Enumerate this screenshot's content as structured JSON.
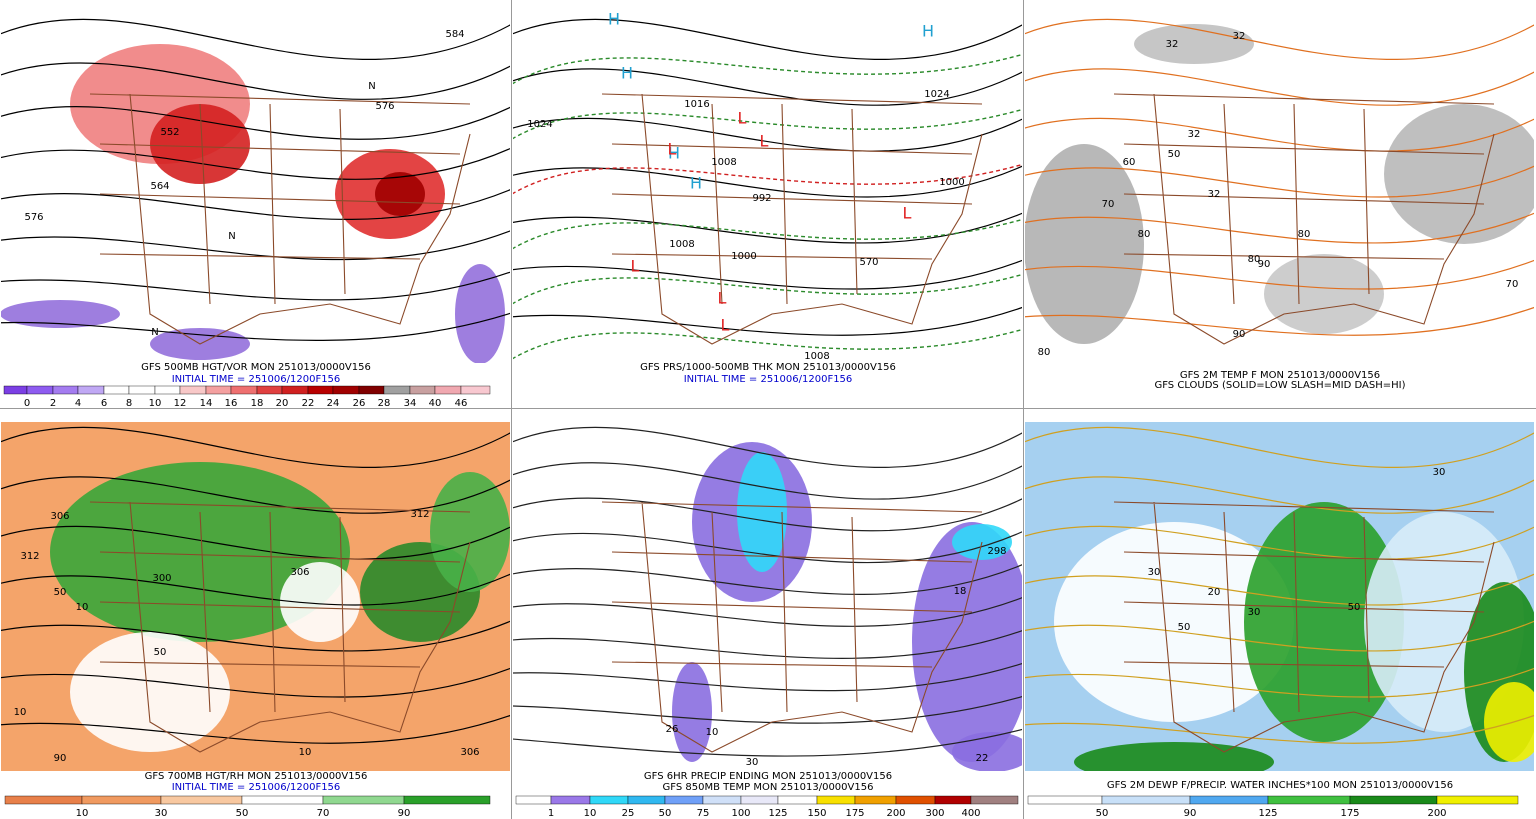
{
  "panels": [
    {
      "caption": [
        "GFS 500MB HGT/VOR MON 251013/0000V156",
        "INITIAL TIME = 251006/1200F156"
      ],
      "colorbar_labels": [
        "0",
        "2",
        "4",
        "6",
        "8",
        "10",
        "12",
        "14",
        "16",
        "18",
        "20",
        "22",
        "24",
        "26",
        "28",
        "34",
        "40",
        "46"
      ],
      "map_labels": [
        "552",
        "564",
        "576",
        "576",
        "584",
        "N",
        "N",
        "N"
      ]
    },
    {
      "caption": [
        "GFS PRS/1000-500MB THK MON 251013/0000V156",
        "INITIAL TIME = 251006/1200F156"
      ],
      "map_labels": [
        "H",
        "H",
        "H",
        "H",
        "H",
        "L",
        "L",
        "L",
        "L",
        "L",
        "L",
        "L",
        "1024",
        "1016",
        "1008",
        "992",
        "1008",
        "1000",
        "570",
        "1008",
        "1000",
        "1024"
      ]
    },
    {
      "caption": [
        "GFS 2M TEMP F MON 251013/0000V156",
        "GFS CLOUDS (SOLID=LOW SLASH=MID DASH=HI)"
      ],
      "map_labels": [
        "32",
        "32",
        "32",
        "32",
        "50",
        "60",
        "70",
        "80",
        "80",
        "80",
        "90",
        "90",
        "80",
        "70"
      ]
    },
    {
      "caption": [
        "GFS 700MB HGT/RH MON 251013/0000V156",
        "INITIAL TIME = 251006/1200F156"
      ],
      "colorbar_labels": [
        "10",
        "30",
        "50",
        "70",
        "90"
      ],
      "map_labels": [
        "312",
        "306",
        "300",
        "306",
        "312",
        "50",
        "10",
        "10",
        "50",
        "90",
        "10",
        "306"
      ]
    },
    {
      "caption": [
        "GFS 6HR PRECIP ENDING MON 251013/0000V156",
        "GFS 850MB TEMP MON 251013/0000V156"
      ],
      "colorbar_labels": [
        "1",
        "10",
        "25",
        "50",
        "75",
        "100",
        "125",
        "150",
        "175",
        "200",
        "300",
        "400"
      ],
      "map_labels": [
        "298",
        "18",
        "26",
        "22",
        "10",
        "30"
      ]
    },
    {
      "caption": [
        "GFS 2M DEWP F/PRECIP. WATER INCHES*100 MON 251013/0000V156"
      ],
      "colorbar_labels": [
        "50",
        "90",
        "125",
        "175",
        "200"
      ],
      "map_labels": [
        "50",
        "30",
        "20",
        "30",
        "50",
        "30"
      ]
    }
  ]
}
